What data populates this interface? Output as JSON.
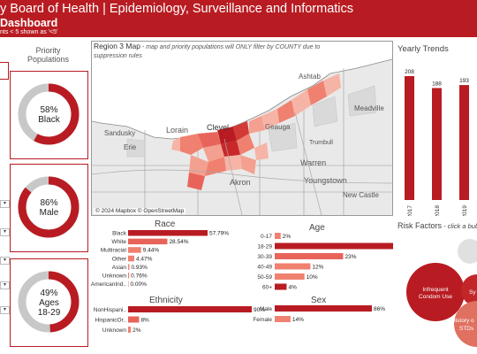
{
  "header": {
    "title": "y Board of Health | Epidemiology, Surveillance and Informatics",
    "subtitle": "Dashboard",
    "note": "nts < 5 shown as '<5'"
  },
  "priority": {
    "title": "Priority Populations",
    "donuts": [
      {
        "pct": "58%",
        "label": "Black",
        "value": 0.58
      },
      {
        "pct": "86%",
        "label": "Male",
        "value": 0.86
      },
      {
        "pct": "49%",
        "label": "Ages",
        "label2": "18-29",
        "value": 0.49
      }
    ]
  },
  "map": {
    "title": "Region 3 Map",
    "subtitle": " - map and priority populations will ONLY filter by COUNTY due to suppression rules",
    "credit": "© 2024 Mapbox  © OpenStreetMap",
    "places": [
      "Ashtab",
      "Sandusky",
      "Erie",
      "Lorain",
      "Clevel",
      "Geauga",
      "Meadville",
      "Akron",
      "Warren",
      "Youngstown",
      "New Castle",
      "Trumbull"
    ]
  },
  "yearly": {
    "title": "Yearly Trends",
    "years": [
      "2017",
      "2018",
      "2019"
    ],
    "values": [
      208,
      188,
      193
    ]
  },
  "race": {
    "title": "Race",
    "rows": [
      {
        "label": "Black",
        "pct": "57.79%",
        "value": 57.79
      },
      {
        "label": "White",
        "pct": "28.54%",
        "value": 28.54
      },
      {
        "label": "Multiracial",
        "pct": "9.44%",
        "value": 9.44
      },
      {
        "label": "Other",
        "pct": "4.47%",
        "value": 4.47
      },
      {
        "label": "Asian",
        "pct": "0.93%",
        "value": 0.93
      },
      {
        "label": "Unknown",
        "pct": "0.76%",
        "value": 0.76
      },
      {
        "label": "AmericanInd..",
        "pct": "0.00%",
        "value": 0.0
      }
    ]
  },
  "age": {
    "title": "Age",
    "rows": [
      {
        "label": "0-17",
        "pct": "2%",
        "value": 2
      },
      {
        "label": "18-29",
        "pct": "49%",
        "value": 49
      },
      {
        "label": "30-39",
        "pct": "23%",
        "value": 23
      },
      {
        "label": "40-49",
        "pct": "12%",
        "value": 12
      },
      {
        "label": "50-59",
        "pct": "10%",
        "value": 10
      },
      {
        "label": "60+",
        "pct": "4%",
        "value": 4
      }
    ]
  },
  "ethnicity": {
    "title": "Ethnicity",
    "rows": [
      {
        "label": "NonHispani..",
        "pct": "90%",
        "value": 90
      },
      {
        "label": "HispanicOr..",
        "pct": "8%",
        "value": 8
      },
      {
        "label": "Unknown",
        "pct": "2%",
        "value": 2
      }
    ]
  },
  "sex": {
    "title": "Sex",
    "rows": [
      {
        "label": "Male",
        "pct": "86%",
        "value": 86
      },
      {
        "label": "Female",
        "pct": "14%",
        "value": 14
      }
    ]
  },
  "risk": {
    "title": "Risk Factors",
    "subtitle": " - click a bub",
    "bubbles": [
      {
        "label": "Infrequent",
        "label2": "Condom Use"
      },
      {
        "label": "Sy"
      },
      {
        "label": "History o",
        "label2": "STDs"
      }
    ]
  },
  "colors": {
    "primary": "#b81c22",
    "light": "#f08070",
    "grey": "#c8c8c8"
  }
}
